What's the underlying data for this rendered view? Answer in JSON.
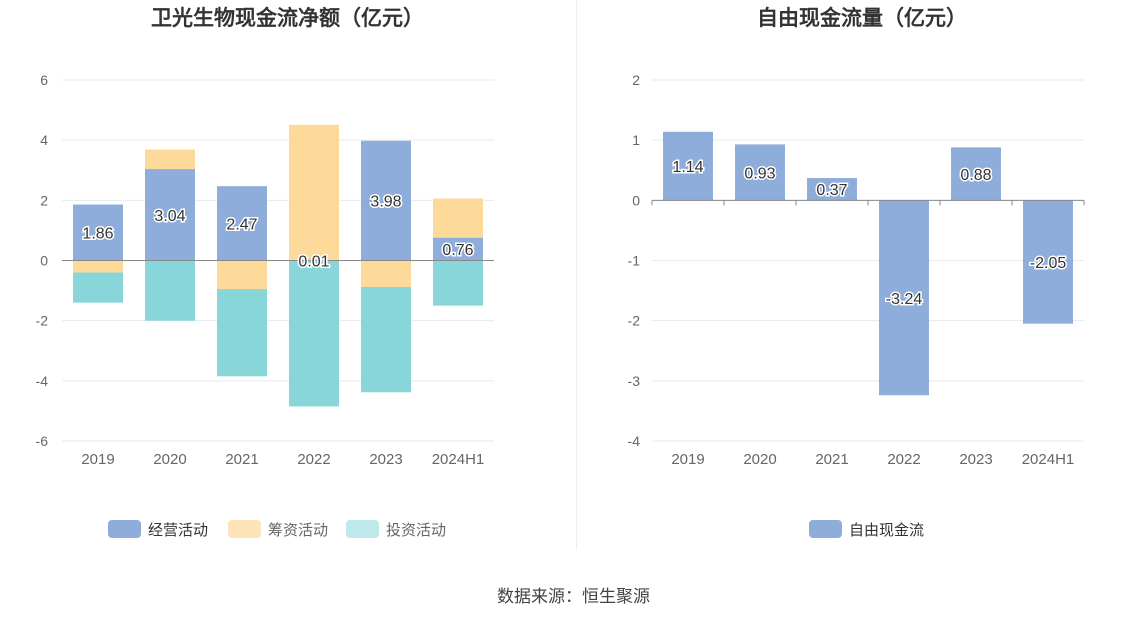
{
  "source_text": "数据来源：恒生聚源",
  "colors": {
    "operating": "#8fadda",
    "financing": "#fdd99a",
    "investing": "#88d6da",
    "fcf": "#8fadda"
  },
  "chart_data": [
    {
      "type": "bar",
      "stacked": true,
      "title": "卫光生物现金流净额（亿元）",
      "categories": [
        "2019",
        "2020",
        "2021",
        "2022",
        "2023",
        "2024H1"
      ],
      "ylim": [
        -6,
        6
      ],
      "yticks": [
        "6",
        "4",
        "2",
        "0",
        "-2",
        "-4",
        "-6"
      ],
      "grid": true,
      "legend_position": "bottom",
      "series": [
        {
          "name": "经营活动",
          "values": [
            1.86,
            3.04,
            2.47,
            0.01,
            3.98,
            0.76
          ],
          "labels": [
            "1.86",
            "3.04",
            "2.47",
            "0.01",
            "3.98",
            "0.76"
          ]
        },
        {
          "name": "筹资活动",
          "values": [
            -0.4,
            0.65,
            -0.95,
            4.5,
            -0.88,
            1.3
          ]
        },
        {
          "name": "投资活动",
          "values": [
            -1.0,
            -2.0,
            -2.9,
            -4.85,
            -3.5,
            -1.5
          ]
        }
      ]
    },
    {
      "type": "bar",
      "title": "自由现金流量（亿元）",
      "categories": [
        "2019",
        "2020",
        "2021",
        "2022",
        "2023",
        "2024H1"
      ],
      "ylim": [
        -4,
        2
      ],
      "yticks": [
        "2",
        "1",
        "0",
        "-1",
        "-2",
        "-3",
        "-4"
      ],
      "grid": true,
      "legend_position": "bottom",
      "series": [
        {
          "name": "自由现金流",
          "values": [
            1.14,
            0.93,
            0.37,
            -3.24,
            0.88,
            -2.05
          ],
          "labels": [
            "1.14",
            "0.93",
            "0.37",
            "-3.24",
            "0.88",
            "-2.05"
          ]
        }
      ]
    }
  ]
}
